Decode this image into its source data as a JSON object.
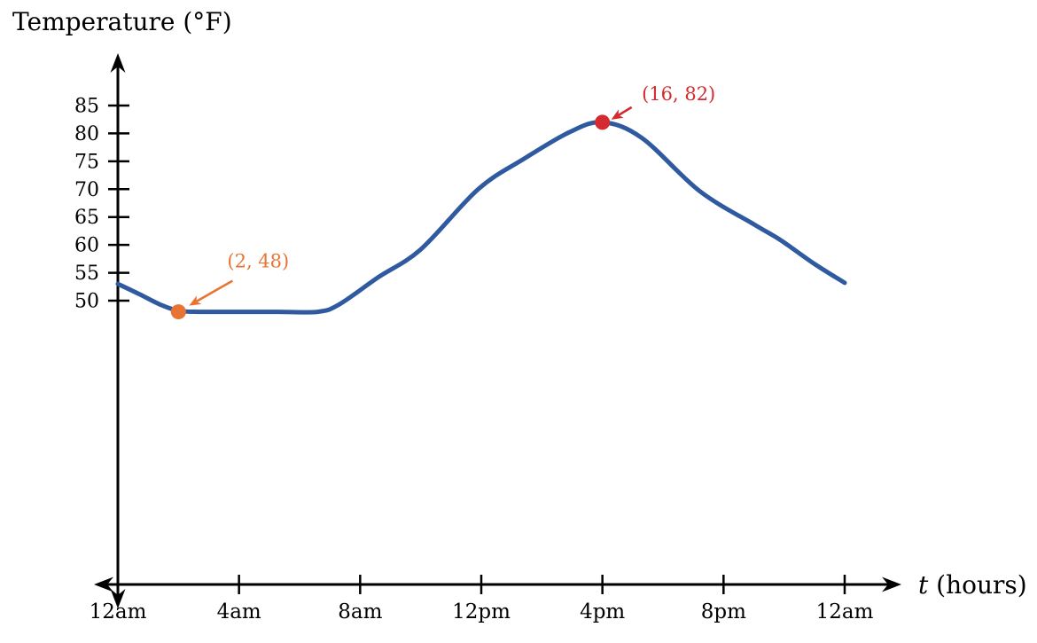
{
  "chart": {
    "title": "Temperature (°F)",
    "x_axis": {
      "variable": "t",
      "unit_suffix": " (hours)"
    }
  },
  "chart_data": {
    "type": "line",
    "title": "Temperature (°F)",
    "xlabel": "t (hours)",
    "ylabel": "Temperature (°F)",
    "x_unit": "hours",
    "xlim": [
      0,
      24
    ],
    "ylim": [
      50,
      85
    ],
    "grid": false,
    "legend": "none",
    "axis_color": "#000000",
    "x_ticks": [
      {
        "t": 0,
        "label": "12am"
      },
      {
        "t": 4,
        "label": "4am"
      },
      {
        "t": 8,
        "label": "8am"
      },
      {
        "t": 12,
        "label": "12pm"
      },
      {
        "t": 16,
        "label": "4pm"
      },
      {
        "t": 20,
        "label": "8pm"
      },
      {
        "t": 24,
        "label": "12am"
      }
    ],
    "y_ticks": [
      50,
      55,
      60,
      65,
      70,
      75,
      80,
      85
    ],
    "series": [
      {
        "name": "temperature",
        "color": "#2f5aa0",
        "points": [
          [
            0,
            53
          ],
          [
            0.7,
            51.2
          ],
          [
            1.4,
            49.3
          ],
          [
            2,
            48.2
          ],
          [
            2.7,
            48
          ],
          [
            4,
            48
          ],
          [
            5.3,
            48
          ],
          [
            6.6,
            48
          ],
          [
            7.3,
            49.3
          ],
          [
            8.6,
            54.2
          ],
          [
            10,
            59.2
          ],
          [
            11.9,
            70
          ],
          [
            13.4,
            75.4
          ],
          [
            14.9,
            80.2
          ],
          [
            16,
            82
          ],
          [
            17.3,
            79.2
          ],
          [
            19.2,
            69.7
          ],
          [
            21,
            63.7
          ],
          [
            21.9,
            60.8
          ],
          [
            23,
            56.6
          ],
          [
            24,
            53.2
          ]
        ]
      }
    ],
    "annotations": [
      {
        "label": "(2, 48)",
        "t": 2,
        "value": 48,
        "color": "#e87434"
      },
      {
        "label": "(16, 82)",
        "t": 16,
        "value": 82,
        "color": "#d32b2f"
      }
    ]
  }
}
